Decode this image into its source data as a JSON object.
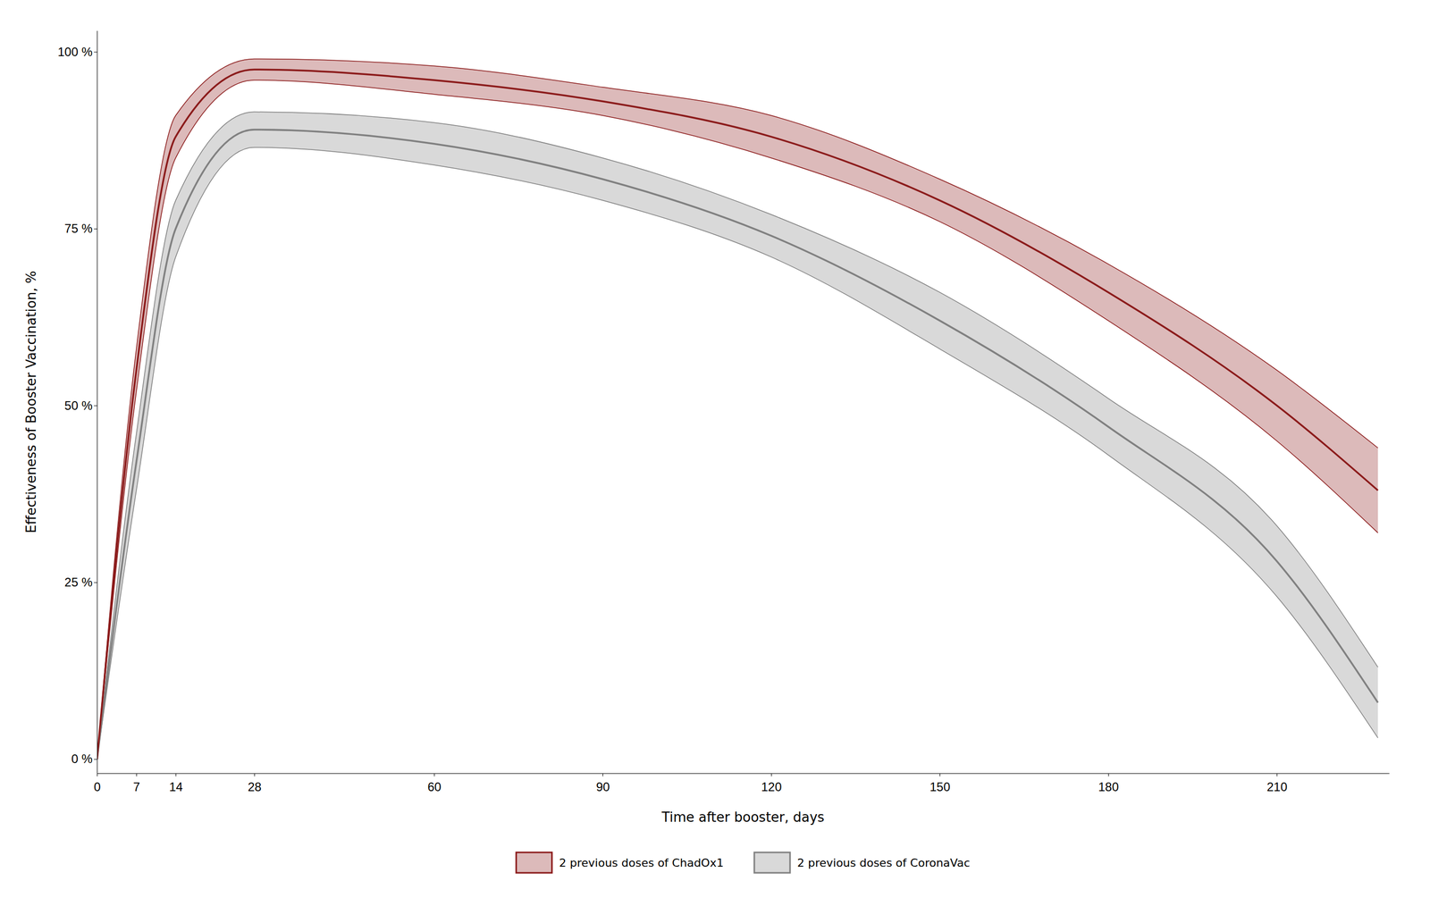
{
  "chart_data": {
    "type": "line",
    "xlabel": "Time after booster, days",
    "ylabel": "Effectiveness of Booster Vaccination, %",
    "x": [
      0,
      7,
      14,
      28,
      60,
      90,
      120,
      150,
      180,
      210,
      228
    ],
    "series": [
      {
        "name": "2 previous doses of ChadOx1",
        "color": "#8B1A1A",
        "values": [
          0,
          55,
          88,
          97.5,
          96,
          93,
          88,
          79,
          66,
          50,
          38
        ],
        "upper": [
          0,
          58,
          91,
          99,
          98,
          95,
          91,
          82,
          70,
          55,
          44
        ],
        "lower": [
          0,
          52,
          85,
          96,
          94,
          91,
          85,
          76,
          62,
          45,
          32
        ]
      },
      {
        "name": "2 previous doses of CoronaVac",
        "color": "#808080",
        "values": [
          0,
          42,
          75,
          89,
          87,
          82,
          74,
          62,
          47,
          28,
          8
        ],
        "upper": [
          0,
          46,
          79,
          91.5,
          90,
          85,
          77,
          66,
          51,
          33,
          13
        ],
        "lower": [
          0,
          38,
          71,
          86.5,
          84,
          79,
          71,
          58,
          43,
          23,
          3
        ]
      }
    ],
    "xlim": [
      0,
      230
    ],
    "ylim": [
      -2,
      103
    ],
    "xticks": [
      0,
      7,
      14,
      28,
      60,
      90,
      120,
      150,
      180,
      210
    ],
    "yticks": [
      {
        "value": 0,
        "label": "0 %"
      },
      {
        "value": 25,
        "label": "25 %"
      },
      {
        "value": 50,
        "label": "50 %"
      },
      {
        "value": 75,
        "label": "75 %"
      },
      {
        "value": 100,
        "label": "100 %"
      }
    ],
    "grid": false,
    "legend": "bottom"
  }
}
